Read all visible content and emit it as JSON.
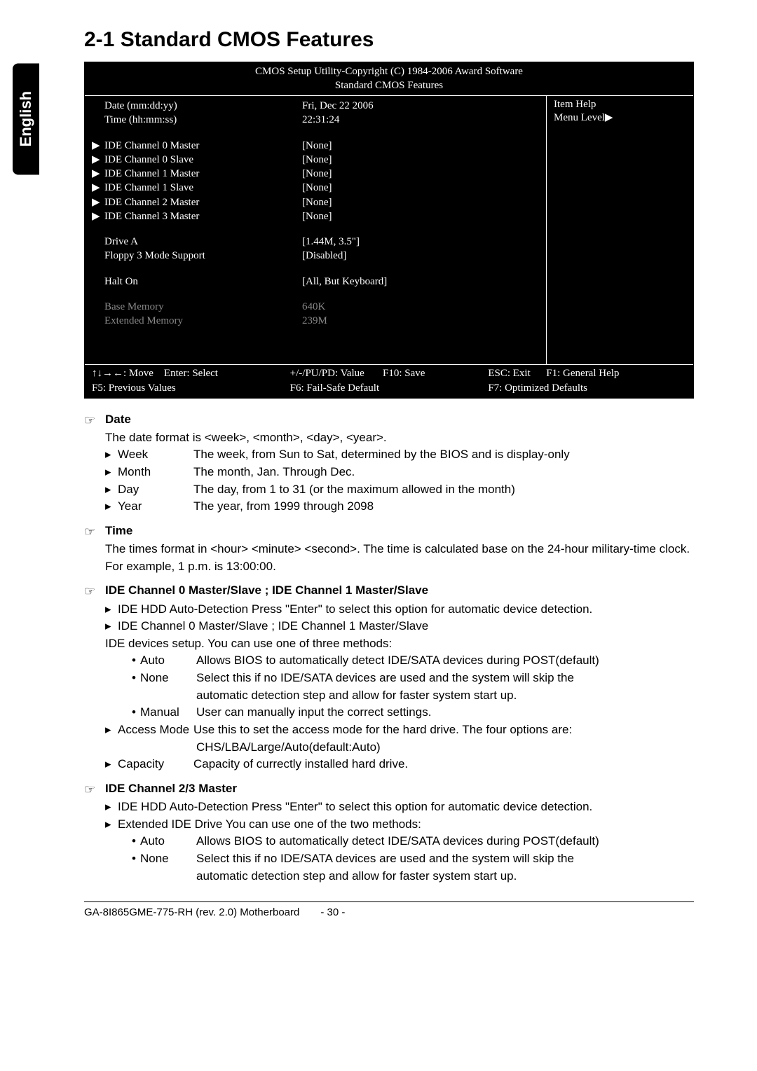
{
  "lang_tab": "English",
  "heading": "2-1     Standard CMOS Features",
  "bios": {
    "title_line1": "CMOS Setup Utility-Copyright (C) 1984-2006 Award Software",
    "title_line2": "Standard CMOS Features",
    "rows": [
      {
        "ind": "",
        "label": "Date (mm:dd:yy)",
        "value": "Fri, Dec  22  2006",
        "dim": false
      },
      {
        "ind": "",
        "label": "Time (hh:mm:ss)",
        "value": "22:31:24",
        "dim": false
      }
    ],
    "rows2": [
      {
        "ind": "▶",
        "label": "IDE Channel 0 Master",
        "value": "[None]",
        "dim": false
      },
      {
        "ind": "▶",
        "label": "IDE Channel 0 Slave",
        "value": "[None]",
        "dim": false
      },
      {
        "ind": "▶",
        "label": "IDE Channel 1 Master",
        "value": "[None]",
        "dim": false
      },
      {
        "ind": "▶",
        "label": "IDE Channel 1 Slave",
        "value": "[None]",
        "dim": false
      },
      {
        "ind": "▶",
        "label": "IDE Channel 2 Master",
        "value": "[None]",
        "dim": false
      },
      {
        "ind": "▶",
        "label": "IDE Channel 3 Master",
        "value": "[None]",
        "dim": false
      }
    ],
    "rows3": [
      {
        "ind": "",
        "label": "Drive A",
        "value": "[1.44M, 3.5\"]",
        "dim": false
      },
      {
        "ind": "",
        "label": "Floppy 3 Mode Support",
        "value": "[Disabled]",
        "dim": false
      }
    ],
    "rows4": [
      {
        "ind": "",
        "label": "Halt On",
        "value": "[All, But Keyboard]",
        "dim": false
      }
    ],
    "rows5": [
      {
        "ind": "",
        "label": "Base Memory",
        "value": "640K",
        "dim": true
      },
      {
        "ind": "",
        "label": "Extended Memory",
        "value": "239M",
        "dim": true
      }
    ],
    "help_title": "Item Help",
    "help_level": "Menu Level▶",
    "footer": {
      "c1a": "↑↓→←: Move",
      "c1b": "Enter: Select",
      "c1c": "F5: Previous Values",
      "c2a": "+/-/PU/PD: Value",
      "c2b": "F10: Save",
      "c2c": "F6: Fail-Safe Default",
      "c3a": "ESC: Exit",
      "c3b": "F1: General Help",
      "c3c": "F7: Optimized Defaults"
    }
  },
  "sections": {
    "date": {
      "title": "Date",
      "intro": "The date format is <week>, <month>, <day>, <year>.",
      "items": [
        {
          "k": "Week",
          "d": "The week, from Sun to Sat, determined by the BIOS and is display-only"
        },
        {
          "k": "Month",
          "d": "The month, Jan. Through Dec."
        },
        {
          "k": "Day",
          "d": "The day, from 1 to 31 (or the maximum allowed in the month)"
        },
        {
          "k": "Year",
          "d": "The year, from 1999 through 2098"
        }
      ]
    },
    "time": {
      "title": "Time",
      "text": "The times format in <hour> <minute> <second>. The time is calculated base on the 24-hour military-time clock. For example, 1 p.m. is 13:00:00."
    },
    "ide01": {
      "title": "IDE Channel 0 Master/Slave ; IDE Channel 1 Master/Slave",
      "l1": "IDE HDD Auto-Detection  Press \"Enter\" to select this option for automatic device detection.",
      "l2": "IDE Channel 0 Master/Slave ; IDE Channel 1 Master/Slave",
      "l3": "IDE devices setup.  You can use one of three methods:",
      "bullets": [
        {
          "k": "Auto",
          "d": "Allows BIOS to automatically detect IDE/SATA devices during POST(default)"
        },
        {
          "k": "None",
          "d": "Select this if no IDE/SATA devices are used and the system will skip the"
        },
        {
          "k": "",
          "d": "automatic detection step and allow for faster system start up.",
          "cont": true
        },
        {
          "k": "Manual",
          "d": "User can manually input the correct settings."
        }
      ],
      "l4k": "Access Mode",
      "l4d": "Use this to set the access mode for the hard drive. The four options are:",
      "l4c": "CHS/LBA/Large/Auto(default:Auto)",
      "l5k": "Capacity",
      "l5d": "Capacity of currectly installed hard drive."
    },
    "ide23": {
      "title": "IDE Channel 2/3 Master",
      "l1": "IDE HDD Auto-Detection  Press \"Enter\" to select this option for automatic device detection.",
      "l2": "Extended IDE Drive You can use one of the two methods:",
      "bullets": [
        {
          "k": "Auto",
          "d": "Allows BIOS to automatically detect IDE/SATA devices during POST(default)"
        },
        {
          "k": "None",
          "d": "Select this if no IDE/SATA devices are used and the system will skip the"
        },
        {
          "k": "",
          "d": "automatic detection step and allow for faster system start up.",
          "cont": true
        }
      ]
    }
  },
  "footer": {
    "left": "GA-8I865GME-775-RH (rev. 2.0) Motherboard",
    "page": "- 30 -"
  }
}
